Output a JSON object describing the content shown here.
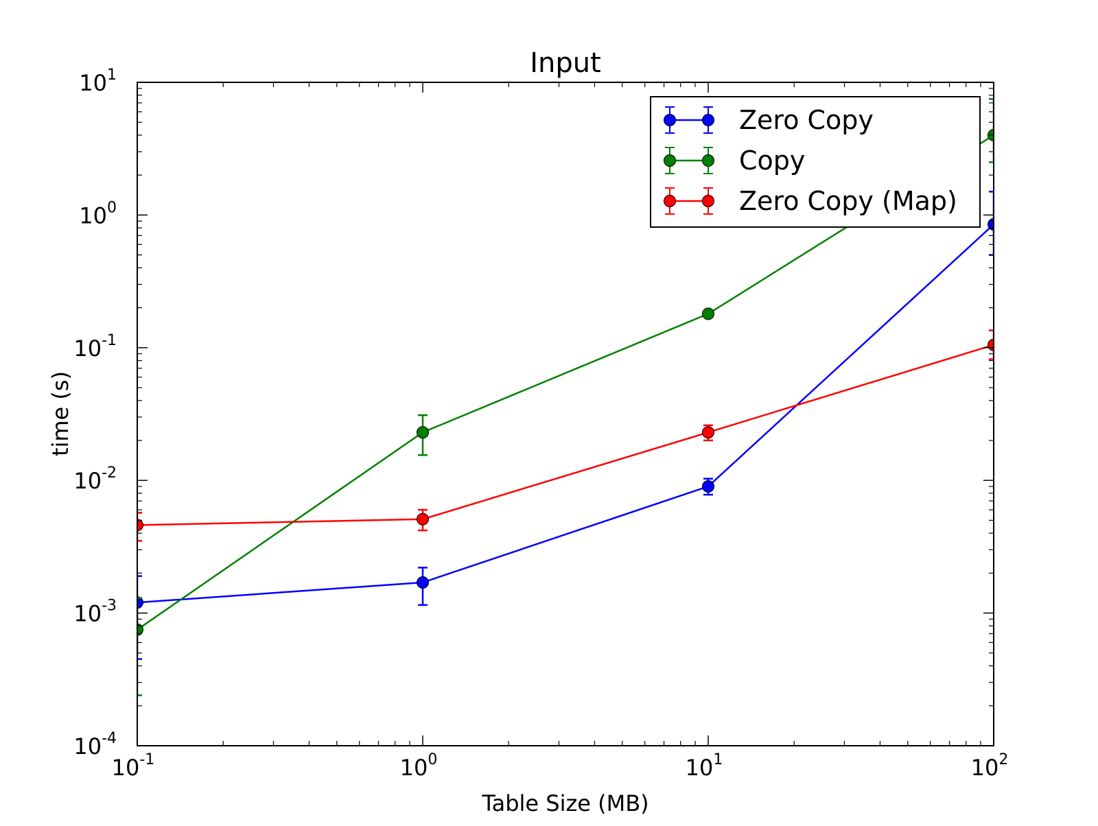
{
  "chart_data": {
    "type": "line",
    "title": "Input",
    "xlabel": "Table Size (MB)",
    "ylabel": "time (s)",
    "xscale": "log",
    "yscale": "log",
    "xlim": [
      0.1,
      100
    ],
    "ylim": [
      0.0001,
      10
    ],
    "x_ticks": [
      {
        "value": 0.1,
        "base": "10",
        "exp": "-1"
      },
      {
        "value": 1,
        "base": "10",
        "exp": "0"
      },
      {
        "value": 10,
        "base": "10",
        "exp": "1"
      },
      {
        "value": 100,
        "base": "10",
        "exp": "2"
      }
    ],
    "y_ticks": [
      {
        "value": 0.0001,
        "base": "10",
        "exp": "-4"
      },
      {
        "value": 0.001,
        "base": "10",
        "exp": "-3"
      },
      {
        "value": 0.01,
        "base": "10",
        "exp": "-2"
      },
      {
        "value": 0.1,
        "base": "10",
        "exp": "-1"
      },
      {
        "value": 1,
        "base": "10",
        "exp": "0"
      },
      {
        "value": 10,
        "base": "10",
        "exp": "1"
      }
    ],
    "grid": false,
    "legend_position": "top-right",
    "series": [
      {
        "name": "Zero Copy",
        "color": "#0000ff",
        "x": [
          0.1,
          1,
          10,
          100
        ],
        "y": [
          0.0012,
          0.0017,
          0.009,
          0.85
        ],
        "err_low": [
          0.00045,
          0.00115,
          0.0078,
          0.5
        ],
        "err_high": [
          0.0019,
          0.0022,
          0.0103,
          1.5
        ]
      },
      {
        "name": "Copy",
        "color": "#008000",
        "x": [
          0.1,
          1,
          10,
          100
        ],
        "y": [
          0.00075,
          0.023,
          0.18,
          4.0
        ],
        "err_low": [
          0.00024,
          0.0155,
          0.175,
          2.5
        ],
        "err_high": [
          0.0013,
          0.031,
          0.186,
          7.5
        ]
      },
      {
        "name": "Zero Copy (Map)",
        "color": "#ff0000",
        "x": [
          0.1,
          1,
          10,
          100
        ],
        "y": [
          0.0046,
          0.0051,
          0.023,
          0.105
        ],
        "err_low": [
          0.0035,
          0.0042,
          0.02,
          0.082
        ],
        "err_high": [
          0.0057,
          0.006,
          0.026,
          0.135
        ]
      }
    ]
  }
}
